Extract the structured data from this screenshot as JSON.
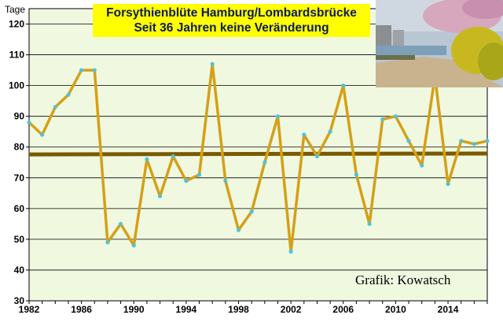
{
  "chart_data": {
    "type": "line",
    "title": "Forsythienblüte Hamburg/Lombardsbrücke",
    "subtitle": "Seit 36 Jahren keine Veränderung",
    "ylabel": "Tage",
    "xlabel": "",
    "credit": "Grafik: Kowatsch",
    "ylim": [
      30,
      125
    ],
    "xlim": [
      1982,
      2017
    ],
    "yticks": [
      30,
      40,
      50,
      60,
      70,
      80,
      90,
      100,
      110,
      120
    ],
    "xticks": [
      1982,
      1986,
      1990,
      1994,
      1998,
      2002,
      2006,
      2010,
      2014
    ],
    "grid": true,
    "series": [
      {
        "x": [
          1982,
          1983,
          1984,
          1985,
          1986,
          1987,
          1988,
          1989,
          1990,
          1991,
          1992,
          1993,
          1994,
          1995,
          1996,
          1997,
          1998,
          1999,
          2000,
          2001,
          2002,
          2003,
          2004,
          2005,
          2006,
          2007,
          2008,
          2009,
          2010,
          2011,
          2012,
          2013,
          2014,
          2015,
          2016,
          2017
        ],
        "values": [
          88,
          84,
          93,
          97,
          105,
          105,
          49,
          55,
          48,
          76,
          64,
          77,
          69,
          71,
          107,
          69,
          53,
          59,
          75,
          90,
          46,
          84,
          77,
          85,
          100,
          71,
          55,
          89,
          90,
          82,
          74,
          103,
          68,
          82,
          81,
          82
        ],
        "color": "#d4a017"
      }
    ],
    "trend": {
      "x": [
        1982,
        2017
      ],
      "values": [
        77.6,
        77.9
      ],
      "color": "#7a5a00"
    }
  },
  "colors": {
    "plot_bg": "#f0f8e0",
    "grid": "#000000",
    "marker": "#4fc3d9",
    "title_bg": "#ffff00",
    "title_text": "#0b1a5c"
  }
}
